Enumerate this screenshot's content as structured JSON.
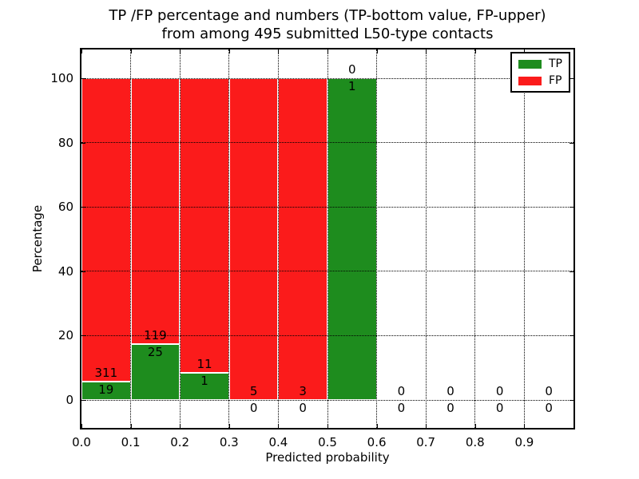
{
  "title": {
    "line1": "TP /FP percentage and numbers (TP-bottom value, FP-upper)",
    "line2": "from among 495 submitted L50-type contacts"
  },
  "chart_data": {
    "type": "bar",
    "stacked": true,
    "total_contacts": 495,
    "title": "TP /FP percentage and numbers (TP-bottom value, FP-upper) from among 495 submitted L50-type contacts",
    "xlabel": "Predicted probability",
    "ylabel": "Percentage",
    "bin_edges": [
      0.0,
      0.1,
      0.2,
      0.3,
      0.4,
      0.5,
      0.6,
      0.7,
      0.8,
      0.9,
      1.0
    ],
    "categories": [
      "0.0-0.1",
      "0.1-0.2",
      "0.2-0.3",
      "0.3-0.4",
      "0.4-0.5",
      "0.5-0.6",
      "0.6-0.7",
      "0.7-0.8",
      "0.8-0.9",
      "0.9-1.0"
    ],
    "series": [
      {
        "name": "TP",
        "color": "#1e8c1e",
        "counts": [
          19,
          25,
          1,
          0,
          0,
          1,
          0,
          0,
          0,
          0
        ],
        "pct": [
          5.76,
          17.36,
          8.33,
          0,
          0,
          100,
          0,
          0,
          0,
          0
        ]
      },
      {
        "name": "FP",
        "color": "#fb1b1b",
        "counts": [
          311,
          119,
          11,
          5,
          3,
          0,
          0,
          0,
          0,
          0
        ],
        "pct": [
          94.24,
          82.64,
          91.67,
          100,
          100,
          0,
          0,
          0,
          0,
          0
        ]
      }
    ],
    "annotation_rule": "TP count below segment boundary, FP count above",
    "xlim": [
      0.0,
      1.0
    ],
    "ylim": [
      -9.4,
      109.4
    ],
    "x_tick_labels": [
      "0.0",
      "0.1",
      "0.2",
      "0.3",
      "0.4",
      "0.5",
      "0.6",
      "0.7",
      "0.8",
      "0.9"
    ],
    "x_tick_values": [
      0.0,
      0.1,
      0.2,
      0.3,
      0.4,
      0.5,
      0.6,
      0.7,
      0.8,
      0.9
    ],
    "y_tick_labels": [
      "0",
      "20",
      "40",
      "60",
      "80",
      "100"
    ],
    "y_tick_values": [
      0,
      20,
      40,
      60,
      80,
      100
    ],
    "grid": "dotted-black-on-top",
    "legend": {
      "position": "upper right",
      "entries": [
        {
          "label": "TP",
          "color": "#1e8c1e"
        },
        {
          "label": "FP",
          "color": "#fb1b1b"
        }
      ]
    }
  }
}
